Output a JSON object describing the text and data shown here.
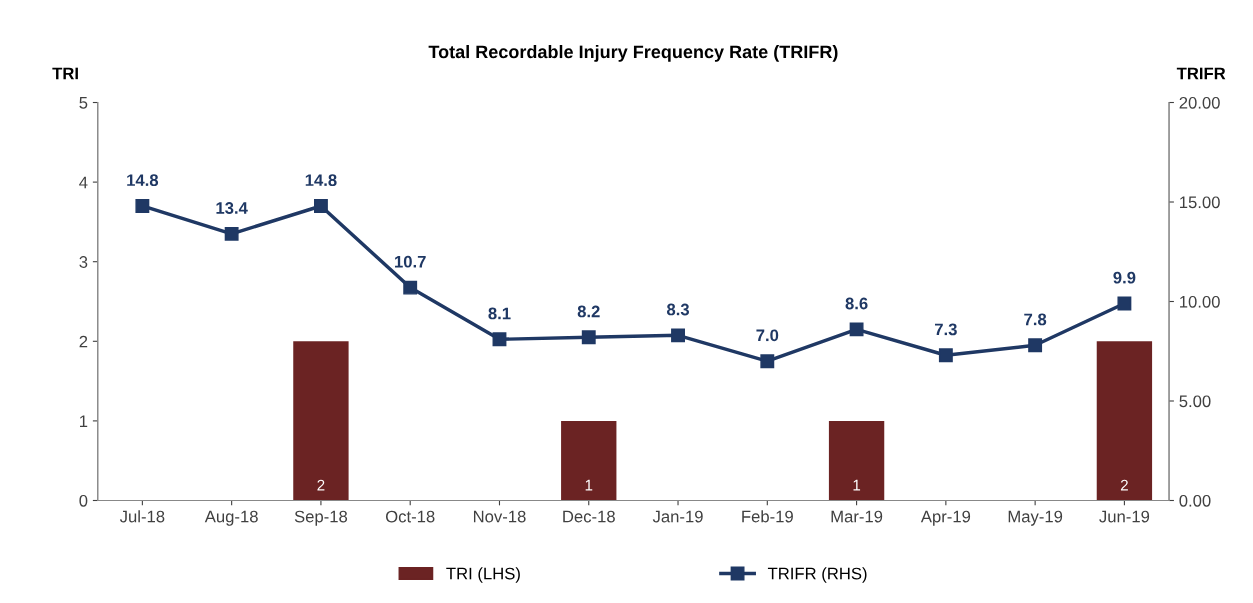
{
  "chart_data": {
    "type": "bar",
    "title": "Total Recordable Injury Frequency Rate (TRIFR)",
    "ylabel": "TRI",
    "y2label": "TRIFR",
    "categories": [
      "Jul-18",
      "Aug-18",
      "Sep-18",
      "Oct-18",
      "Nov-18",
      "Dec-18",
      "Jan-19",
      "Feb-19",
      "Mar-19",
      "Apr-19",
      "May-19",
      "Jun-19"
    ],
    "series": [
      {
        "name": "TRI (LHS)",
        "color": "#6b2323",
        "values": [
          0,
          0,
          2,
          0,
          0,
          1,
          0,
          0,
          1,
          0,
          0,
          2
        ],
        "value_labels": [
          null,
          null,
          "2",
          null,
          null,
          "1",
          null,
          null,
          "1",
          null,
          null,
          "2"
        ]
      },
      {
        "name": "TRIFR (RHS)",
        "type": "line",
        "axis": "y2",
        "color": "#1f3864",
        "marker": "square",
        "values": [
          14.8,
          13.4,
          14.8,
          10.7,
          8.1,
          8.2,
          8.3,
          7.0,
          8.6,
          7.3,
          7.8,
          9.9
        ],
        "value_labels": [
          "14.8",
          "13.4",
          "14.8",
          "10.7",
          "8.1",
          "8.2",
          "8.3",
          "7.0",
          "8.6",
          "7.3",
          "7.8",
          "9.9"
        ]
      }
    ],
    "ylim": [
      0,
      5
    ],
    "yticks": [
      0,
      1,
      2,
      3,
      4,
      5
    ],
    "y2lim": [
      0,
      20
    ],
    "y2ticks": [
      {
        "value": 0,
        "label": "0.00"
      },
      {
        "value": 5,
        "label": "5.00"
      },
      {
        "value": 10,
        "label": "10.00"
      },
      {
        "value": 15,
        "label": "15.00"
      },
      {
        "value": 20,
        "label": "20.00"
      }
    ],
    "grid": false,
    "legend": "bottom"
  }
}
